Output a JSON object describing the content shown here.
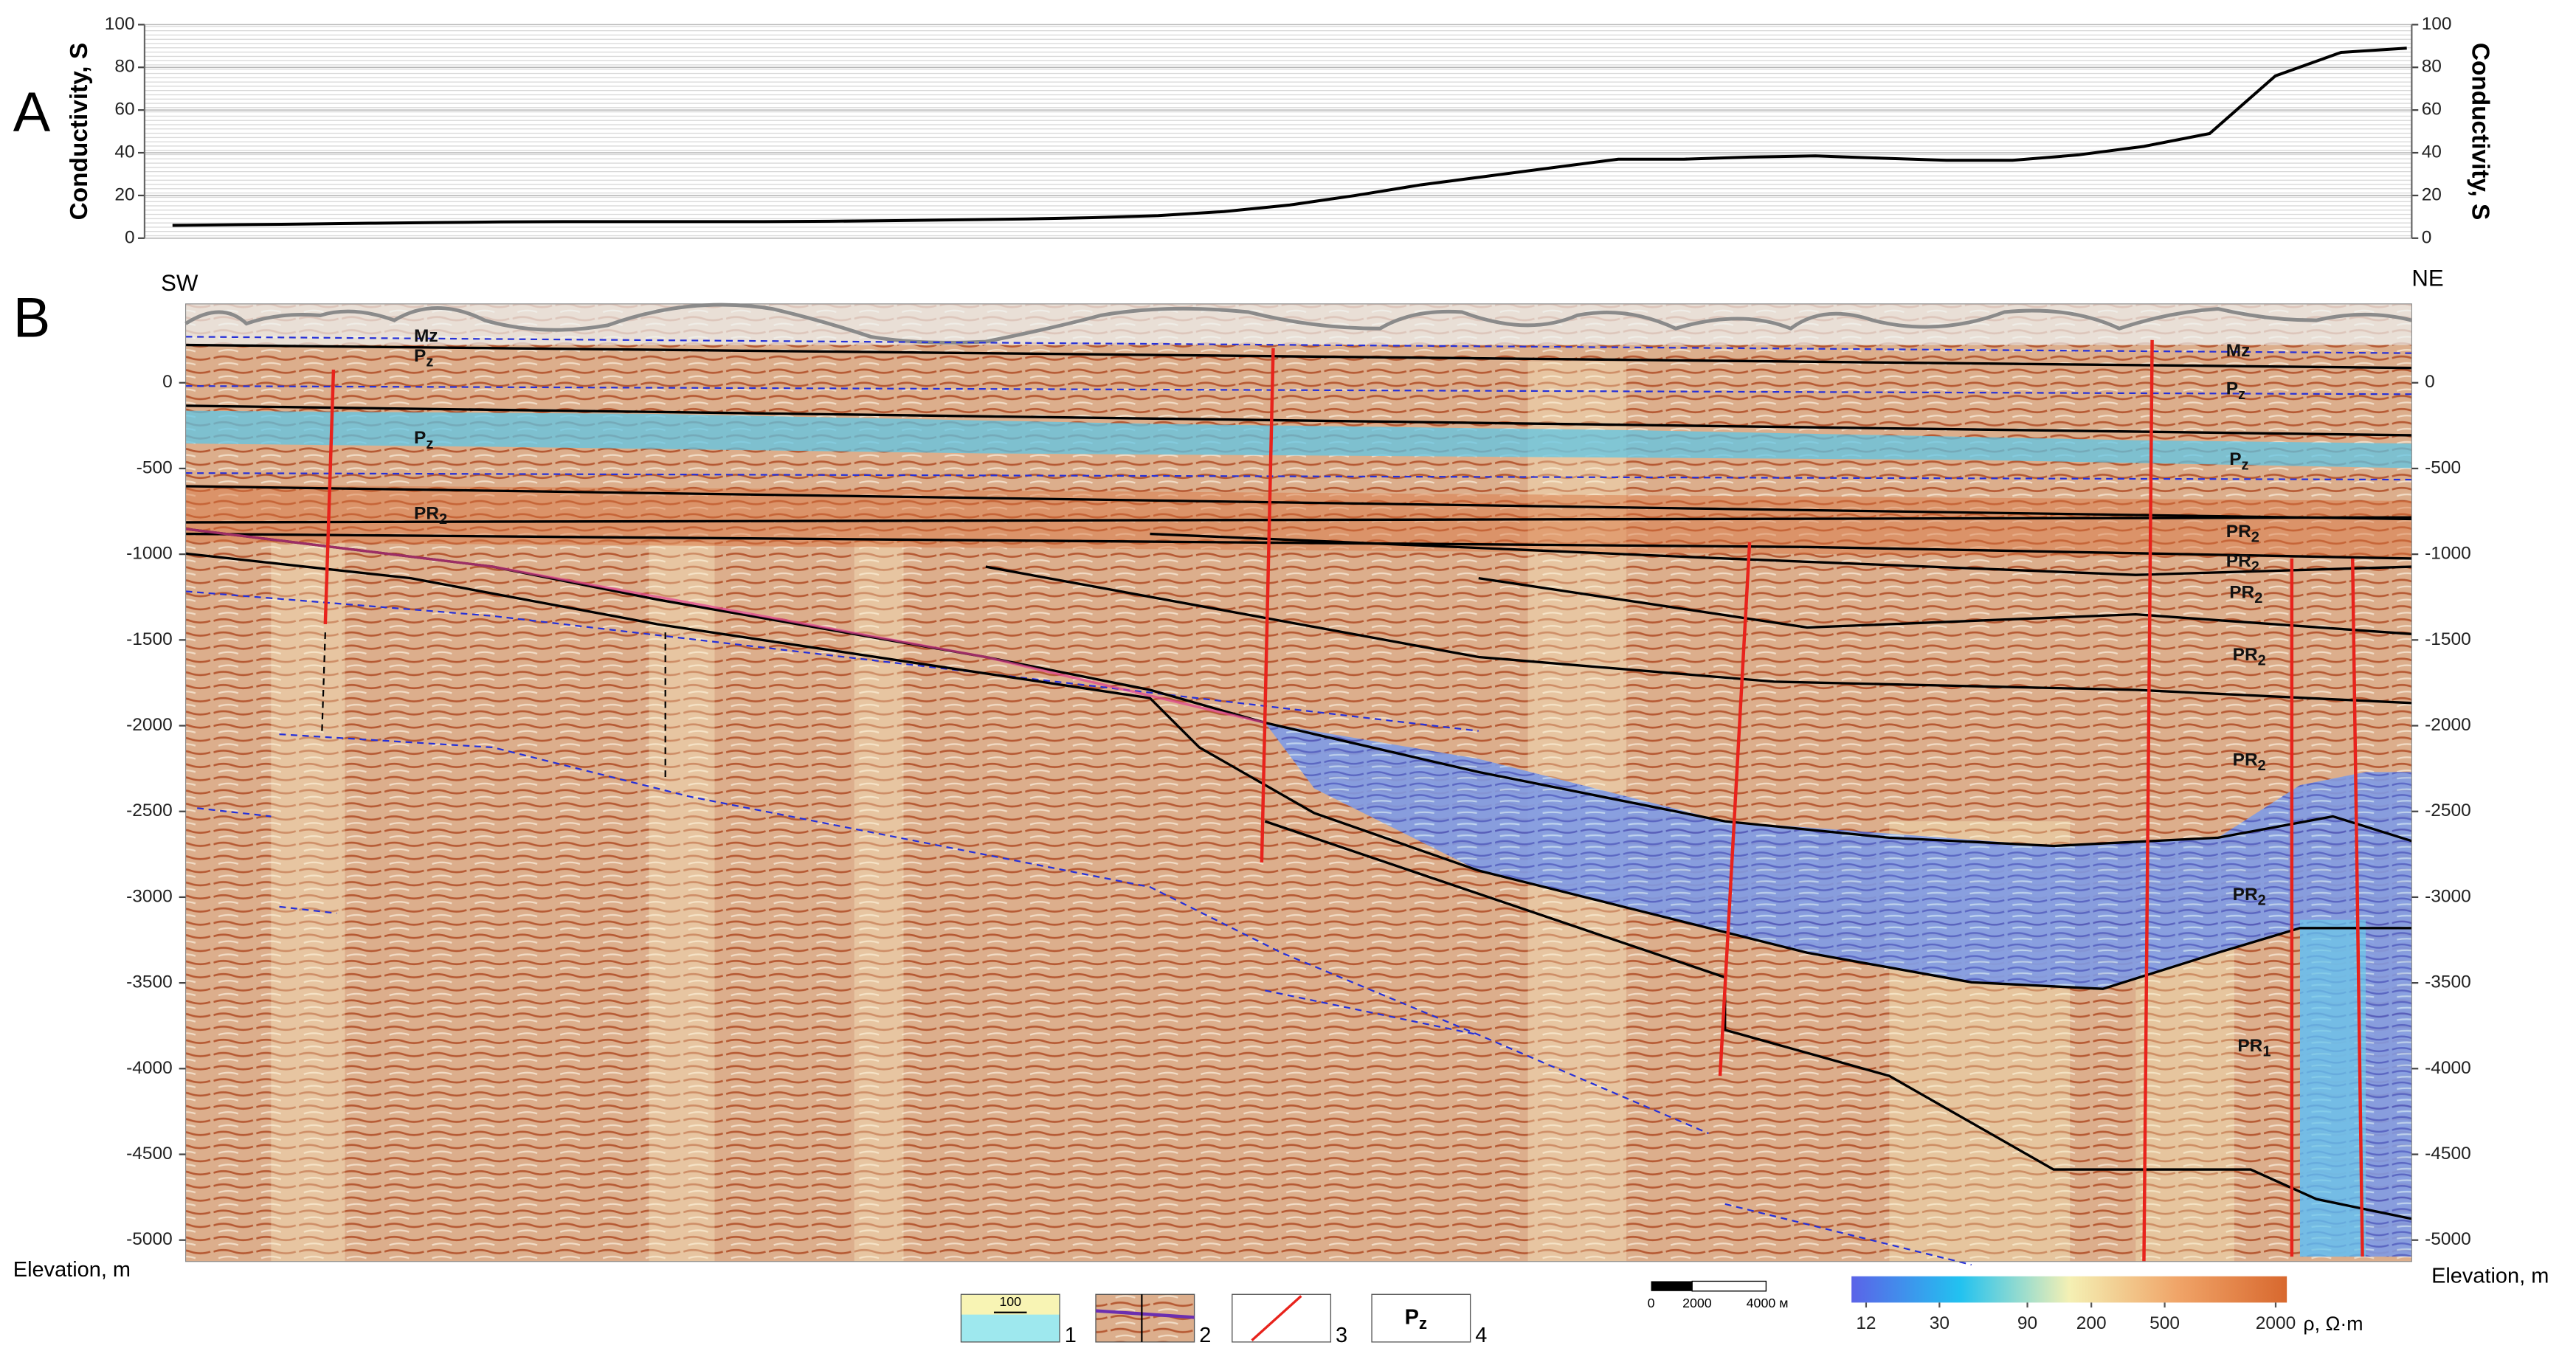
{
  "chart_data": [
    {
      "type": "line",
      "panel": "A",
      "ylabel": "Conductivity, S",
      "color": "#000000",
      "values": [
        6,
        6.3,
        6.6,
        7,
        7.3,
        7.6,
        7.8,
        7.8,
        7.8,
        7.8,
        7.9,
        8.2,
        8.6,
        9,
        9.6,
        10.5,
        12.5,
        15.5,
        20,
        25,
        29,
        33,
        37,
        37,
        38,
        38.5,
        37.5,
        36.5,
        36.5,
        39,
        43,
        49,
        76,
        87,
        89
      ],
      "ylim": [
        0,
        100
      ],
      "yticks": [
        0,
        20,
        40,
        60,
        80,
        100
      ],
      "grid": true
    },
    {
      "type": "section",
      "panel": "B",
      "ylabel": "Elevation, m",
      "left_label": "SW",
      "right_label": "NE",
      "ylim": [
        -5125,
        460
      ],
      "yticks": [
        0,
        -500,
        -1000,
        -1500,
        -2000,
        -2500,
        -3000,
        -3500,
        -4000,
        -4500,
        -5000
      ],
      "units": [
        {
          "base": "Mz"
        },
        {
          "base": "P",
          "sub": "z"
        },
        {
          "base": "P",
          "sub": "z"
        },
        {
          "base": "PR",
          "sub": "2"
        },
        {
          "base": "Mz"
        },
        {
          "base": "P",
          "sub": "z"
        },
        {
          "base": "P",
          "sub": "z"
        },
        {
          "base": "PR",
          "sub": "2"
        },
        {
          "base": "PR",
          "sub": "2"
        },
        {
          "base": "PR",
          "sub": "2"
        },
        {
          "base": "PR",
          "sub": "2"
        },
        {
          "base": "PR",
          "sub": "2"
        },
        {
          "base": "PR",
          "sub": "2"
        },
        {
          "base": "PR",
          "sub": "1"
        }
      ],
      "colorbar": {
        "label": "ρ, Ω·m",
        "log": true,
        "lim": [
          10,
          2300
        ],
        "ticks": [
          12,
          30,
          90,
          200,
          500,
          2000
        ],
        "colors": [
          "#5b63e8",
          "#22c2f0",
          "#f4f0b4",
          "#f0a468",
          "#d8682e"
        ]
      }
    }
  ],
  "scale_bar": [
    "0",
    "2000",
    "4000 м"
  ],
  "legend": [
    {
      "text": "100",
      "number": "1"
    },
    {
      "number": "2"
    },
    {
      "number": "3"
    },
    {
      "text": "P",
      "sub": "z",
      "number": "4"
    }
  ]
}
